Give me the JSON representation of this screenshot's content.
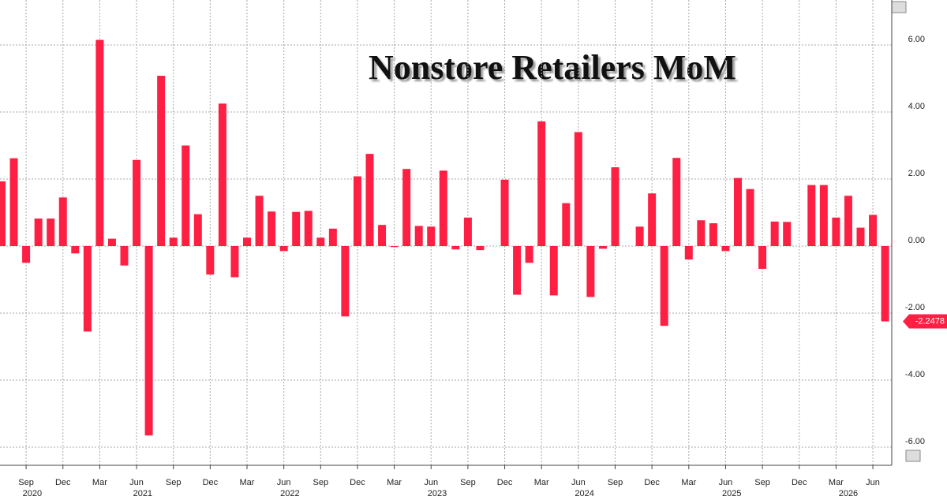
{
  "chart_data": {
    "type": "bar",
    "title": "Nonstore Retailers MoM",
    "x": [
      "2020-07",
      "2020-08",
      "2020-09",
      "2020-10",
      "2020-11",
      "2020-12",
      "2021-01",
      "2021-02",
      "2021-03",
      "2021-04",
      "2021-05",
      "2021-06",
      "2021-07",
      "2021-08",
      "2021-09",
      "2021-10",
      "2021-11",
      "2021-12",
      "2022-01",
      "2022-02",
      "2022-03",
      "2022-04",
      "2022-05",
      "2022-06",
      "2022-07",
      "2022-08",
      "2022-09",
      "2022-10",
      "2022-11",
      "2022-12",
      "2023-01",
      "2023-02",
      "2023-03",
      "2023-04",
      "2023-05",
      "2023-06",
      "2023-07",
      "2023-08",
      "2023-09",
      "2023-10",
      "2023-11",
      "2023-12",
      "2024-01",
      "2024-02",
      "2024-03",
      "2024-04",
      "2024-05",
      "2024-06",
      "2024-07",
      "2024-08",
      "2024-09",
      "2024-10",
      "2024-11",
      "2024-12",
      "2025-01",
      "2025-02",
      "2025-03",
      "2025-04",
      "2025-05",
      "2025-06",
      "2025-07",
      "2025-08",
      "2025-09",
      "2025-10",
      "2025-11",
      "2025-12",
      "2026-01",
      "2026-02",
      "2026-03",
      "2026-04",
      "2026-05",
      "2026-06",
      "2026-07"
    ],
    "values": [
      1.93,
      2.62,
      -0.5,
      0.82,
      0.82,
      1.45,
      -0.22,
      -2.55,
      6.15,
      0.22,
      -0.58,
      2.57,
      -5.65,
      5.08,
      0.25,
      3.0,
      0.95,
      -0.85,
      4.25,
      -0.93,
      0.25,
      1.5,
      1.03,
      -0.15,
      1.02,
      1.05,
      0.25,
      0.52,
      -2.1,
      2.08,
      2.75,
      0.63,
      -0.03,
      2.3,
      0.6,
      0.58,
      2.25,
      -0.1,
      0.85,
      -0.12,
      0,
      1.98,
      -1.45,
      -0.5,
      3.72,
      -1.47,
      1.28,
      3.4,
      -1.52,
      -0.08,
      2.35,
      0,
      0.58,
      1.57,
      -2.38,
      2.63,
      -0.4,
      0.77,
      0.68,
      -0.15,
      2.03,
      1.7,
      -0.68,
      0.73,
      0.72,
      0,
      1.82,
      1.82,
      0.85,
      1.5,
      0.55,
      0.93,
      -2.2478
    ],
    "color": "#ff1f42",
    "xticks": [
      {
        "value": "2020-09",
        "label": "Sep"
      },
      {
        "value": "2020-12",
        "label": "Dec"
      },
      {
        "value": "2021-03",
        "label": "Mar"
      },
      {
        "value": "2021-06",
        "label": "Jun"
      },
      {
        "value": "2021-09",
        "label": "Sep"
      },
      {
        "value": "2021-12",
        "label": "Dec"
      },
      {
        "value": "2022-03",
        "label": "Mar"
      },
      {
        "value": "2022-06",
        "label": "Jun"
      },
      {
        "value": "2022-09",
        "label": "Sep"
      },
      {
        "value": "2022-12",
        "label": "Dec"
      },
      {
        "value": "2023-03",
        "label": "Mar"
      },
      {
        "value": "2023-06",
        "label": "Jun"
      },
      {
        "value": "2023-09",
        "label": "Sep"
      },
      {
        "value": "2023-12",
        "label": "Dec"
      },
      {
        "value": "2024-03",
        "label": "Mar"
      },
      {
        "value": "2024-06",
        "label": "Jun"
      },
      {
        "value": "2024-09",
        "label": "Sep"
      },
      {
        "value": "2024-12",
        "label": "Dec"
      },
      {
        "value": "2025-03",
        "label": "Mar"
      },
      {
        "value": "2025-06",
        "label": "Jun"
      },
      {
        "value": "2025-09",
        "label": "Sep"
      },
      {
        "value": "2025-12",
        "label": "Dec"
      },
      {
        "value": "2026-03",
        "label": "Mar"
      },
      {
        "value": "2026-06",
        "label": "Jun"
      }
    ],
    "years": [
      "2020",
      "2021",
      "2022",
      "2023",
      "2024",
      "2025",
      "2026"
    ],
    "ylim": [
      -6.54,
      7.34
    ],
    "yticks": [
      {
        "value": -6,
        "label": "-6.00"
      },
      {
        "value": -4,
        "label": "-4.00"
      },
      {
        "value": -2,
        "label": "-2.00"
      },
      {
        "value": 0,
        "label": "0.00"
      },
      {
        "value": 2,
        "label": "2.00"
      },
      {
        "value": 4,
        "label": "4.00"
      },
      {
        "value": 6,
        "label": "6.00"
      }
    ],
    "grid": true
  }
}
